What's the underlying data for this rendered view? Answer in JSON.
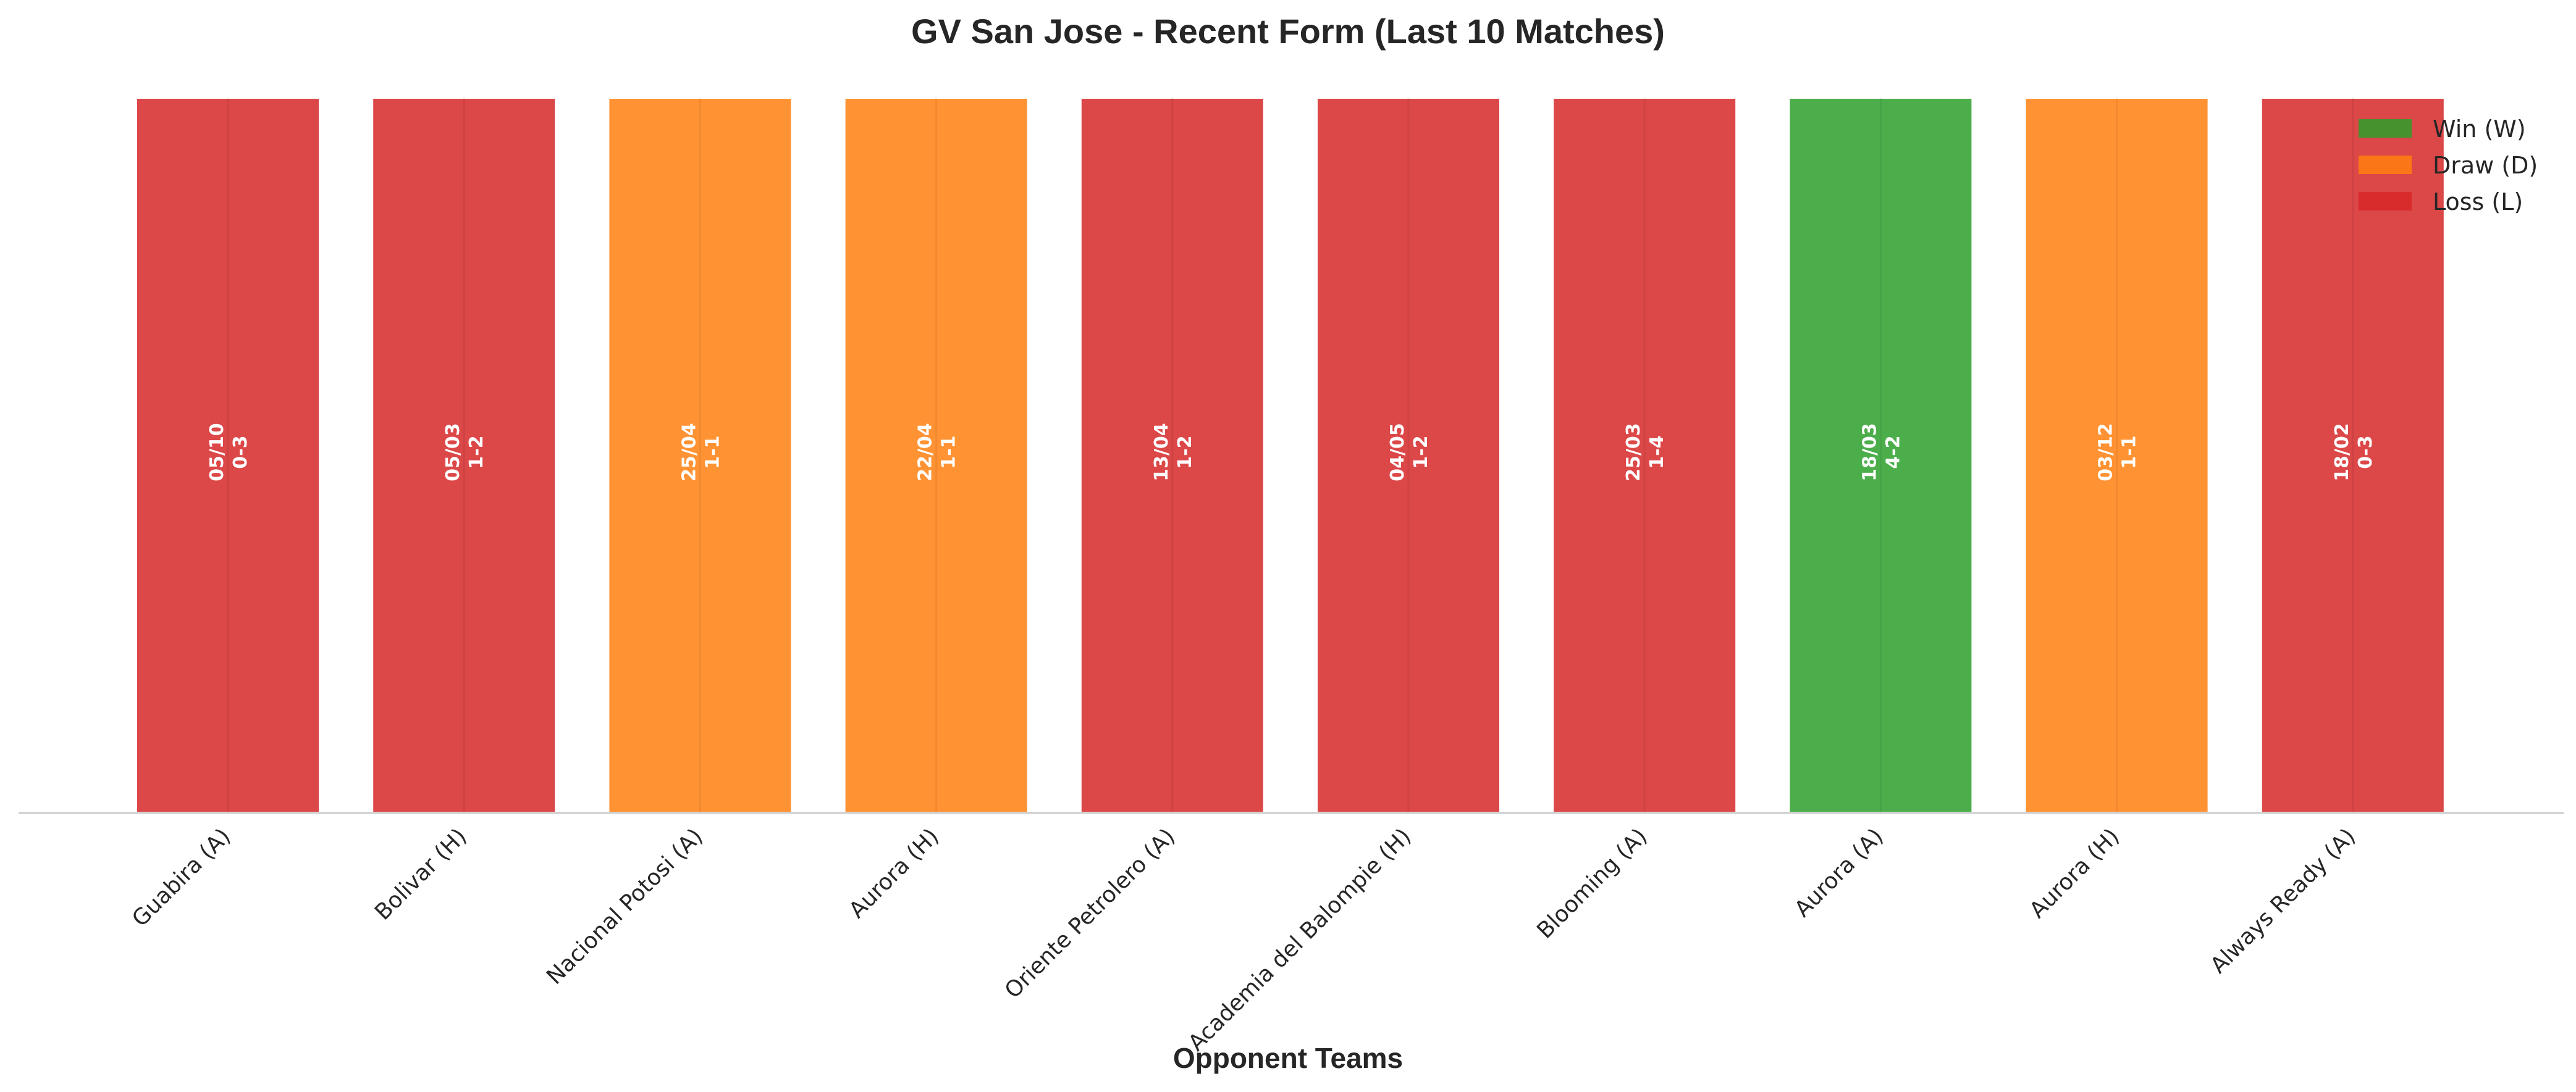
{
  "chart_data": {
    "type": "bar",
    "title": "GV San Jose - Recent Form (Last 10 Matches)",
    "xlabel": "Opponent Teams",
    "ylabel": "",
    "ylim": [
      0,
      1
    ],
    "grid": false,
    "legend_position": "top-right",
    "categories": [
      "Guabira (A)",
      "Bolivar (H)",
      "Nacional Potosi (A)",
      "Aurora (H)",
      "Oriente Petrolero (A)",
      "Academia del Balompie (H)",
      "Blooming (A)",
      "Aurora (A)",
      "Aurora (H)",
      "Always Ready (A)"
    ],
    "values": [
      1,
      1,
      1,
      1,
      1,
      1,
      1,
      1,
      1,
      1
    ],
    "results": [
      "L",
      "L",
      "D",
      "D",
      "L",
      "L",
      "L",
      "W",
      "D",
      "L"
    ],
    "dates": [
      "05/10",
      "05/03",
      "25/04",
      "22/04",
      "13/04",
      "04/05",
      "25/03",
      "18/03",
      "03/12",
      "18/02"
    ],
    "scores": [
      "0-3",
      "1-2",
      "1-1",
      "1-1",
      "1-2",
      "1-2",
      "1-4",
      "4-2",
      "1-1",
      "0-3"
    ],
    "legend": [
      {
        "key": "W",
        "label": "Win (W)",
        "color": "#2ca02c"
      },
      {
        "key": "D",
        "label": "Draw (D)",
        "color": "#ff7f0e"
      },
      {
        "key": "L",
        "label": "Loss (L)",
        "color": "#d62728"
      }
    ]
  }
}
